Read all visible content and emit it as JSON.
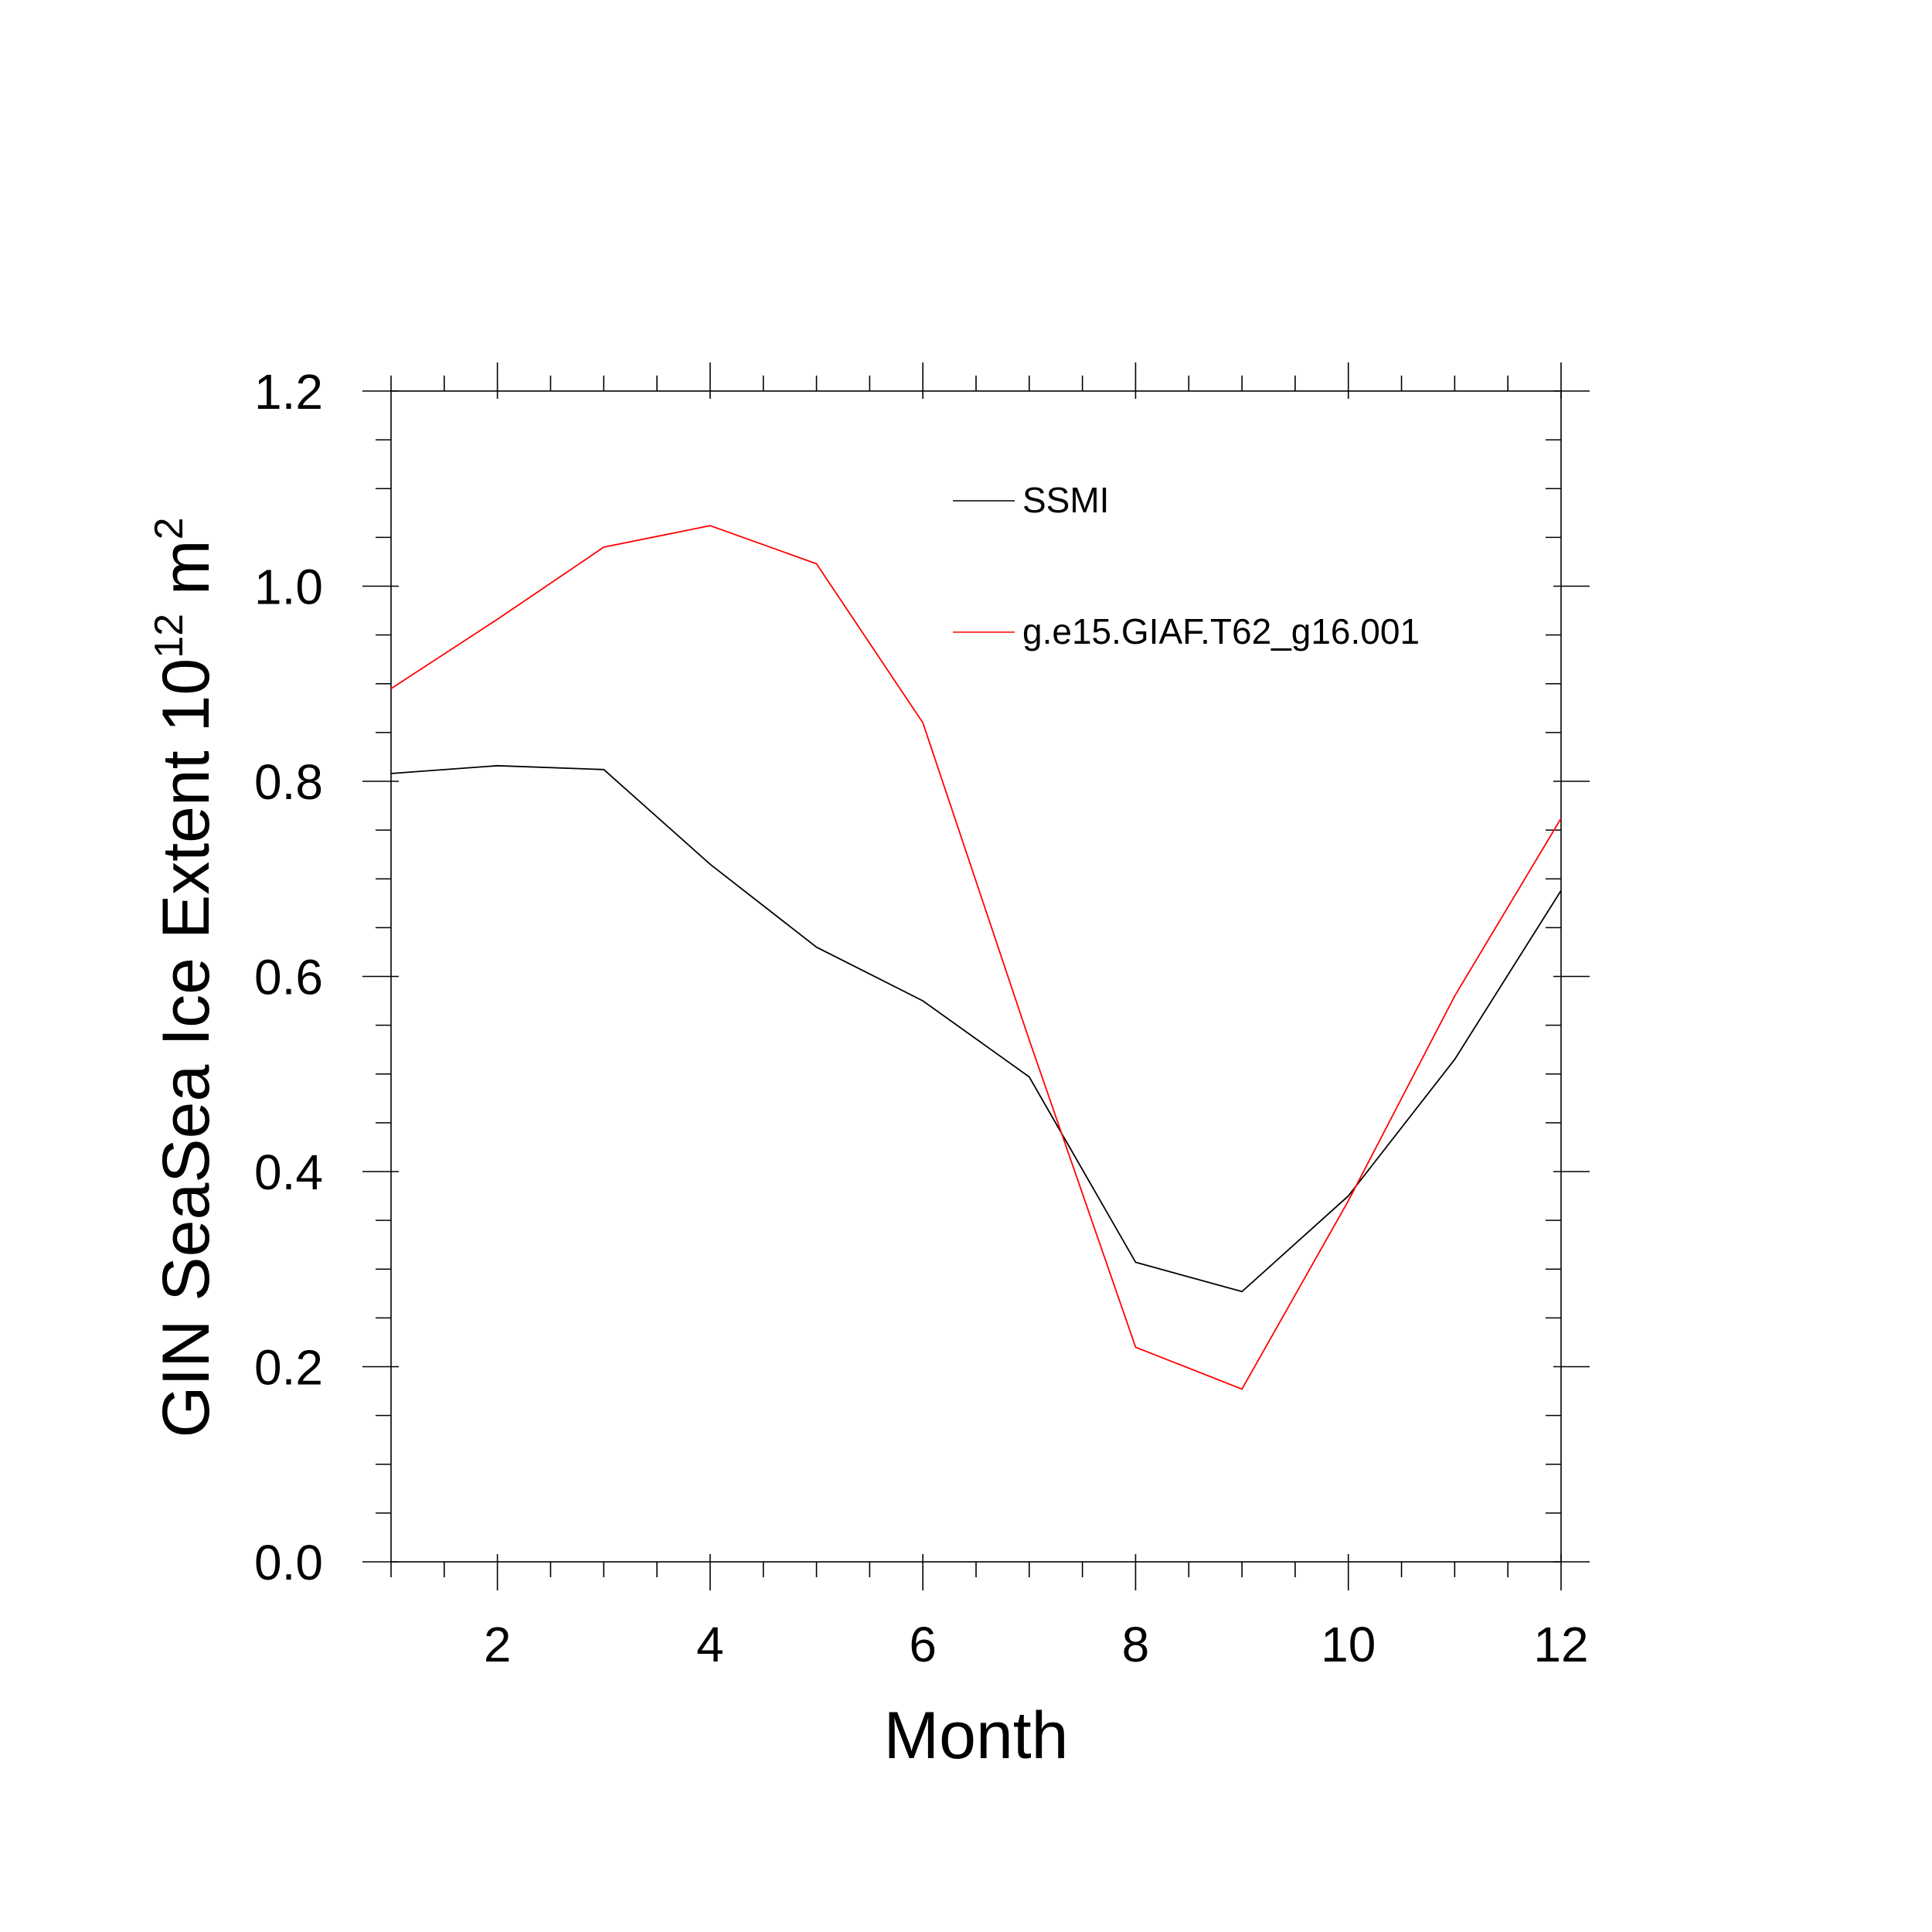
{
  "chart_data": {
    "type": "line",
    "xlabel": "Month",
    "ylabel": "GIN SeaSea Ice Extent 10",
    "ylabel_exp1": "12",
    "ylabel_mid": " m",
    "ylabel_exp2": "2",
    "xlim": [
      1,
      12
    ],
    "ylim": [
      0.0,
      1.2
    ],
    "x_ticks": [
      2,
      4,
      6,
      8,
      10,
      12
    ],
    "x_tick_labels": [
      "2",
      "4",
      "6",
      "8",
      "10",
      "12"
    ],
    "y_ticks": [
      0.0,
      0.2,
      0.4,
      0.6,
      0.8,
      1.0,
      1.2
    ],
    "y_tick_labels": [
      "0.0",
      "0.2",
      "0.4",
      "0.6",
      "0.8",
      "1.0",
      "1.2"
    ],
    "grid": false,
    "legend_position": "top-right",
    "x": [
      1,
      2,
      3,
      4,
      5,
      6,
      7,
      8,
      9,
      10,
      11,
      12
    ],
    "series": [
      {
        "name": "SSMI",
        "color": "#000000",
        "values": [
          0.808,
          0.816,
          0.812,
          0.715,
          0.63,
          0.575,
          0.497,
          0.307,
          0.277,
          0.375,
          0.515,
          0.688
        ]
      },
      {
        "name": "g.e15.GIAF.T62_g16.001",
        "color": "#ff0000",
        "values": [
          0.895,
          0.966,
          1.04,
          1.062,
          1.023,
          0.86,
          0.535,
          0.22,
          0.177,
          0.37,
          0.58,
          0.762
        ]
      }
    ]
  }
}
